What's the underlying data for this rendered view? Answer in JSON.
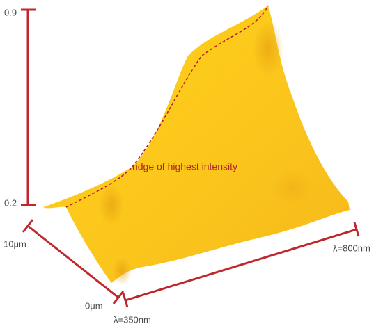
{
  "axes": {
    "intensity": {
      "top_label": "0.9",
      "bottom_label": "0.2"
    },
    "depth": {
      "far_label": "10μm",
      "near_label": "0μm"
    },
    "wavelength": {
      "start_label": "λ=350nm",
      "end_label": "λ=800nm"
    }
  },
  "annotation": "ridge of highest intensity"
}
